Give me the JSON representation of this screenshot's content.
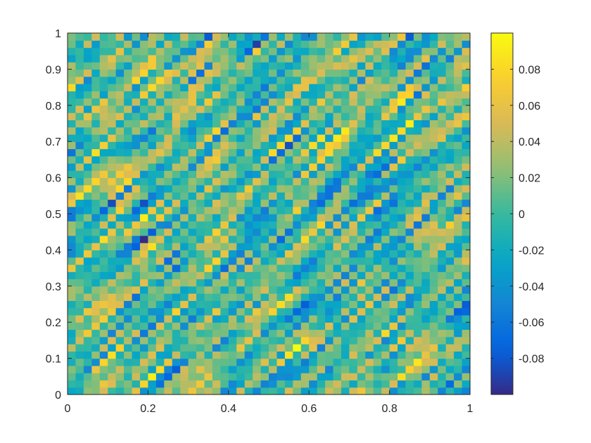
{
  "chart_data": {
    "type": "heatmap",
    "title": "",
    "xlabel": "",
    "ylabel": "",
    "xlim": [
      0,
      1
    ],
    "ylim": [
      0,
      1
    ],
    "x_ticks": [
      0,
      0.2,
      0.4,
      0.6,
      0.8,
      1
    ],
    "x_tick_labels": [
      "0",
      "0.2",
      "0.4",
      "0.6",
      "0.8",
      "1"
    ],
    "y_ticks": [
      0,
      0.1,
      0.2,
      0.3,
      0.4,
      0.5,
      0.6,
      0.7,
      0.8,
      0.9,
      1
    ],
    "y_tick_labels": [
      "0",
      "0.1",
      "0.2",
      "0.3",
      "0.4",
      "0.5",
      "0.6",
      "0.7",
      "0.8",
      "0.9",
      "1"
    ],
    "grid": false,
    "colormap": "parula",
    "colormap_stops": [
      "#352a87",
      "#0363e1",
      "#1485d4",
      "#06a7c6",
      "#38b99e",
      "#92bf73",
      "#d9ba56",
      "#fcce2e",
      "#f9fb0e"
    ],
    "clim": [
      -0.1,
      0.1
    ],
    "colorbar": {
      "location": "right",
      "ticks": [
        -0.08,
        -0.06,
        -0.04,
        -0.02,
        0,
        0.02,
        0.04,
        0.06,
        0.08
      ],
      "tick_labels": [
        "-0.08",
        "-0.06",
        "-0.04",
        "-0.02",
        "0",
        "0.02",
        "0.04",
        "0.06",
        "0.08"
      ]
    },
    "field_description_grid_size": 50,
    "pattern": "random field with diagonal streaks oriented bottom-left to top-right, values spanning approximately -0.1 to 0.1"
  }
}
